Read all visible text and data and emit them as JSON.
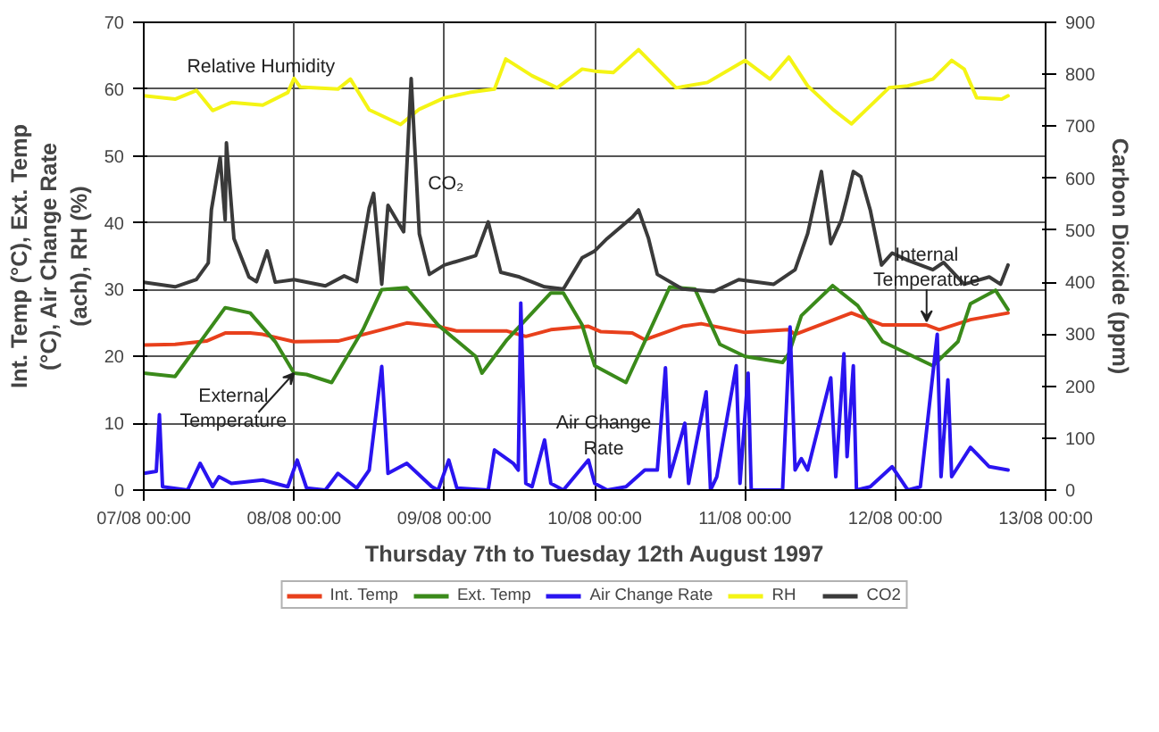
{
  "chart_data": {
    "type": "line",
    "xlabel": "Thursday 7th to Tuesday 12th August 1997",
    "ylabel": "Int. Temp (°C), Ext. Temp (°C), Air Change Rate (ach), RH (%)",
    "y2label": "Carbon Dioxide (ppm)",
    "xlim": [
      "1997-08-07T00:00",
      "1997-08-13T00:00"
    ],
    "xticks": [
      {
        "value": "1997-08-07T00:00",
        "label": "07/08 00:00"
      },
      {
        "value": "1997-08-08T00:00",
        "label": "08/08 00:00"
      },
      {
        "value": "1997-08-09T00:00",
        "label": "09/08 00:00"
      },
      {
        "value": "1997-08-10T00:00",
        "label": "10/08 00:00"
      },
      {
        "value": "1997-08-11T00:00",
        "label": "11/08 00:00"
      },
      {
        "value": "1997-08-12T00:00",
        "label": "12/08 00:00"
      },
      {
        "value": "1997-08-13T00:00",
        "label": "13/08 00:00"
      }
    ],
    "ylim": [
      0,
      70
    ],
    "yticks": [
      0,
      10,
      20,
      30,
      40,
      50,
      60,
      70
    ],
    "y2lim": [
      0,
      900
    ],
    "y2ticks": [
      0,
      100,
      200,
      300,
      400,
      500,
      600,
      700,
      800,
      900
    ],
    "grid": true,
    "legend": "bottom",
    "line_style": "solid",
    "series": [
      {
        "name": "Int. Temp",
        "color": "#e8401c",
        "x": [
          "1997-08-07T00:00",
          "1997-08-07T05:00",
          "1997-08-07T10:00",
          "1997-08-07T13:00",
          "1997-08-07T17:00",
          "1997-08-07T19:00",
          "1997-08-08T00:00",
          "1997-08-08T07:00",
          "1997-08-08T14:00",
          "1997-08-08T18:00",
          "1997-08-08T23:00",
          "1997-08-09T02:00",
          "1997-08-09T10:00",
          "1997-08-09T13:00",
          "1997-08-09T17:00",
          "1997-08-09T23:00",
          "1997-08-10T01:00",
          "1997-08-10T06:00",
          "1997-08-10T08:00",
          "1997-08-10T14:00",
          "1997-08-10T17:00",
          "1997-08-11T00:00",
          "1997-08-11T07:00",
          "1997-08-11T08:00",
          "1997-08-11T17:00",
          "1997-08-11T22:00",
          "1997-08-12T05:00",
          "1997-08-12T07:00",
          "1997-08-12T12:00",
          "1997-08-12T18:00"
        ],
        "values": [
          21.7,
          21.8,
          22.3,
          23.5,
          23.5,
          23.3,
          22.2,
          22.3,
          24,
          25,
          24.5,
          23.8,
          23.8,
          23,
          24,
          24.5,
          23.7,
          23.5,
          22.5,
          24.5,
          24.9,
          23.6,
          24,
          23.3,
          26.5,
          24.7,
          24.7,
          24,
          25.5,
          26.5
        ]
      },
      {
        "name": "Ext. Temp",
        "color": "#3a8a1a",
        "x": [
          "1997-08-07T00:00",
          "1997-08-07T05:00",
          "1997-08-07T13:00",
          "1997-08-07T17:00",
          "1997-08-07T21:00",
          "1997-08-08T00:00",
          "1997-08-08T02:00",
          "1997-08-08T06:00",
          "1997-08-08T11:00",
          "1997-08-08T14:00",
          "1997-08-08T18:00",
          "1997-08-08T23:00",
          "1997-08-09T05:00",
          "1997-08-09T06:00",
          "1997-08-09T10:00",
          "1997-08-09T17:00",
          "1997-08-09T19:00",
          "1997-08-09T22:00",
          "1997-08-10T00:00",
          "1997-08-10T05:00",
          "1997-08-10T12:00",
          "1997-08-10T16:00",
          "1997-08-10T20:00",
          "1997-08-11T00:00",
          "1997-08-11T06:00",
          "1997-08-11T07:00",
          "1997-08-11T09:00",
          "1997-08-11T14:00",
          "1997-08-11T18:00",
          "1997-08-11T22:00",
          "1997-08-12T02:00",
          "1997-08-12T06:00",
          "1997-08-12T10:00",
          "1997-08-12T12:00",
          "1997-08-12T16:00",
          "1997-08-12T18:00"
        ],
        "values": [
          17.5,
          17,
          27.3,
          26.5,
          22.2,
          17.5,
          17.3,
          16.1,
          24,
          30,
          30.3,
          24.7,
          20,
          17.5,
          22.5,
          29.5,
          29.5,
          24.7,
          18.6,
          16.1,
          30.4,
          30.1,
          21.8,
          20,
          19.1,
          20.4,
          26.1,
          30.6,
          27.6,
          22.2,
          20.4,
          18.6,
          22.2,
          27.9,
          29.9,
          27
        ]
      },
      {
        "name": "Air Change Rate",
        "color": "#2a14f0",
        "x": [
          "1997-08-07T00:00",
          "1997-08-07T02:00",
          "1997-08-07T02:30",
          "1997-08-07T03:00",
          "1997-08-07T07:00",
          "1997-08-07T09:00",
          "1997-08-07T11:00",
          "1997-08-07T12:00",
          "1997-08-07T14:00",
          "1997-08-07T19:00",
          "1997-08-07T23:00",
          "1997-08-08T00:30",
          "1997-08-08T02:00",
          "1997-08-08T05:00",
          "1997-08-08T07:00",
          "1997-08-08T10:00",
          "1997-08-08T12:00",
          "1997-08-08T14:00",
          "1997-08-08T15:00",
          "1997-08-08T18:00",
          "1997-08-08T22:00",
          "1997-08-08T23:00",
          "1997-08-09T00:42",
          "1997-08-09T02:00",
          "1997-08-09T07:00",
          "1997-08-09T08:00",
          "1997-08-09T11:00",
          "1997-08-09T11:48",
          "1997-08-09T12:12",
          "1997-08-09T13:00",
          "1997-08-09T14:00",
          "1997-08-09T16:00",
          "1997-08-09T17:00",
          "1997-08-09T19:00",
          "1997-08-09T23:00",
          "1997-08-10T00:00",
          "1997-08-10T02:00",
          "1997-08-10T05:00",
          "1997-08-10T08:00",
          "1997-08-10T10:00",
          "1997-08-10T11:18",
          "1997-08-10T12:00",
          "1997-08-10T14:24",
          "1997-08-10T15:00",
          "1997-08-10T17:48",
          "1997-08-10T18:30",
          "1997-08-10T19:30",
          "1997-08-10T22:36",
          "1997-08-10T23:12",
          "1997-08-11T00:30",
          "1997-08-11T01:00",
          "1997-08-11T06:00",
          "1997-08-11T07:12",
          "1997-08-11T08:00",
          "1997-08-11T09:00",
          "1997-08-11T10:00",
          "1997-08-11T13:42",
          "1997-08-11T14:30",
          "1997-08-11T15:48",
          "1997-08-11T16:18",
          "1997-08-11T17:18",
          "1997-08-11T17:48",
          "1997-08-11T20:00",
          "1997-08-11T23:30",
          "1997-08-12T02:00",
          "1997-08-12T04:00",
          "1997-08-12T06:42",
          "1997-08-12T07:18",
          "1997-08-12T08:24",
          "1997-08-12T09:00",
          "1997-08-12T12:00",
          "1997-08-12T15:00",
          "1997-08-12T18:00"
        ],
        "values": [
          2.5,
          2.8,
          11.3,
          0.5,
          0,
          4,
          0.5,
          2,
          1,
          1.5,
          0.5,
          4.5,
          0.3,
          0,
          2.5,
          0.3,
          3,
          18.5,
          2.5,
          4,
          0.5,
          0,
          4.5,
          0.3,
          0,
          6,
          4,
          3,
          28,
          1,
          0.5,
          7.5,
          1,
          0,
          4.5,
          1,
          0,
          0.5,
          3,
          3,
          18.3,
          2,
          10,
          1,
          14.7,
          0,
          2,
          18.6,
          1,
          17.5,
          0,
          0,
          24.4,
          3,
          4.7,
          3,
          16.8,
          2,
          20.4,
          5,
          18.6,
          0,
          0.5,
          3.5,
          0,
          0.5,
          23.3,
          2,
          16.5,
          2,
          6.4,
          3.5,
          3
        ]
      },
      {
        "name": "RH",
        "color": "#f4f414",
        "x": [
          "1997-08-07T00:00",
          "1997-08-07T05:00",
          "1997-08-07T08:24",
          "1997-08-07T11:00",
          "1997-08-07T14:00",
          "1997-08-07T19:00",
          "1997-08-07T23:00",
          "1997-08-08T00:00",
          "1997-08-08T01:00",
          "1997-08-08T07:00",
          "1997-08-08T09:00",
          "1997-08-08T12:00",
          "1997-08-08T17:00",
          "1997-08-08T20:00",
          "1997-08-09T00:00",
          "1997-08-09T04:00",
          "1997-08-09T08:00",
          "1997-08-09T09:48",
          "1997-08-09T14:00",
          "1997-08-09T18:00",
          "1997-08-09T22:00",
          "1997-08-10T00:00",
          "1997-08-10T03:00",
          "1997-08-10T07:00",
          "1997-08-10T13:00",
          "1997-08-10T18:00",
          "1997-08-11T00:00",
          "1997-08-11T04:00",
          "1997-08-11T07:00",
          "1997-08-11T10:00",
          "1997-08-11T14:00",
          "1997-08-11T17:00",
          "1997-08-11T20:00",
          "1997-08-11T23:00",
          "1997-08-12T02:00",
          "1997-08-12T06:00",
          "1997-08-12T09:00",
          "1997-08-12T11:00",
          "1997-08-12T13:00",
          "1997-08-12T17:00",
          "1997-08-12T18:00"
        ],
        "values": [
          59,
          58.5,
          59.8,
          56.8,
          58,
          57.6,
          59.5,
          61.6,
          60.3,
          60,
          61.5,
          56.9,
          54.7,
          57,
          58.7,
          59.5,
          60,
          64.5,
          62,
          60.2,
          63,
          62.7,
          62.5,
          65.9,
          60.2,
          61,
          64.3,
          61.5,
          64.8,
          60.5,
          57,
          54.8,
          57.5,
          60.2,
          60.5,
          61.5,
          64.3,
          63,
          58.7,
          58.5,
          59
        ]
      },
      {
        "name": "CO2",
        "color": "#3a3a3a",
        "axis": "y2",
        "x": [
          "1997-08-07T00:00",
          "1997-08-07T05:00",
          "1997-08-07T08:24",
          "1997-08-07T10:18",
          "1997-08-07T10:48",
          "1997-08-07T12:12",
          "1997-08-07T13:00",
          "1997-08-07T13:12",
          "1997-08-07T14:24",
          "1997-08-07T16:48",
          "1997-08-07T18:00",
          "1997-08-07T19:42",
          "1997-08-07T21:00",
          "1997-08-08T00:00",
          "1997-08-08T05:00",
          "1997-08-08T08:00",
          "1997-08-08T10:00",
          "1997-08-08T12:00",
          "1997-08-08T12:42",
          "1997-08-08T14:00",
          "1997-08-08T15:00",
          "1997-08-08T17:00",
          "1997-08-08T17:30",
          "1997-08-08T18:42",
          "1997-08-08T20:00",
          "1997-08-08T21:36",
          "1997-08-09T00:00",
          "1997-08-09T05:00",
          "1997-08-09T07:00",
          "1997-08-09T09:00",
          "1997-08-09T12:00",
          "1997-08-09T16:00",
          "1997-08-09T19:00",
          "1997-08-09T22:00",
          "1997-08-10T00:00",
          "1997-08-10T02:00",
          "1997-08-10T06:00",
          "1997-08-10T07:00",
          "1997-08-10T08:36",
          "1997-08-10T10:00",
          "1997-08-10T14:00",
          "1997-08-10T19:00",
          "1997-08-10T23:00",
          "1997-08-11T04:36",
          "1997-08-11T08:00",
          "1997-08-11T10:00",
          "1997-08-11T12:12",
          "1997-08-11T13:42",
          "1997-08-11T15:24",
          "1997-08-11T16:18",
          "1997-08-11T17:18",
          "1997-08-11T18:30",
          "1997-08-11T20:00",
          "1997-08-11T21:48",
          "1997-08-11T23:30",
          "1997-08-12T02:00",
          "1997-08-12T06:00",
          "1997-08-12T07:42",
          "1997-08-12T11:00",
          "1997-08-12T15:00",
          "1997-08-12T16:48",
          "1997-08-12T18:00"
        ],
        "values": [
          400,
          391,
          405,
          437,
          539,
          640,
          520,
          668,
          484,
          410,
          401,
          460,
          400,
          405,
          393,
          412,
          401,
          543,
          571,
          396,
          548,
          507,
          497,
          792,
          493,
          415,
          433,
          451,
          516,
          419,
          410,
          391,
          387,
          447,
          460,
          484,
          525,
          539,
          484,
          415,
          387,
          382,
          405,
          396,
          424,
          493,
          613,
          474,
          520,
          562,
          613,
          603,
          539,
          433,
          456,
          442,
          424,
          438,
          396,
          410,
          396,
          433
        ]
      }
    ],
    "annotations": [
      "Relative Humidity",
      "CO₂",
      {
        "text": "External\nTemperature",
        "x": "1997-08-08T00:00",
        "y": 17.5
      },
      {
        "text": "Internal\nTemperature",
        "x": "1997-08-12T05:00",
        "y": 24.7
      },
      "Air Change\nRate"
    ]
  }
}
